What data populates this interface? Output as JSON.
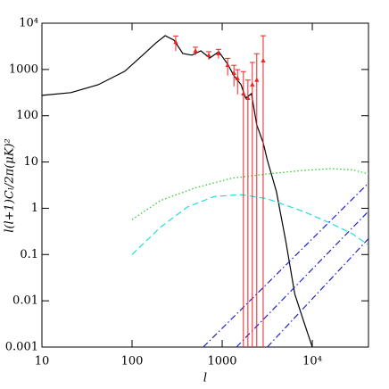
{
  "chart_data": {
    "type": "line",
    "xlabel": "l",
    "ylabel": "l(l+1)Cₗ/2π(μK)²",
    "xscale": "log",
    "yscale": "log",
    "xlim": [
      10,
      42000
    ],
    "ylim": [
      0.001,
      10000
    ],
    "xticks": [
      10,
      100,
      1000,
      {
        "value": 10000,
        "label": "10⁴"
      }
    ],
    "yticks": [
      0.001,
      0.01,
      0.1,
      1,
      10,
      100,
      1000,
      {
        "value": 10000,
        "label": "10⁴"
      }
    ],
    "series": [
      {
        "color": "#000000",
        "dash": "solid",
        "x": [
          10,
          21,
          42,
          83,
          131,
          185,
          233,
          292,
          366,
          460,
          580,
          728,
          916,
          1150,
          1350,
          1620,
          1820,
          2110,
          2420,
          2850,
          3170,
          4000,
          5060,
          6390,
          8020,
          10000
        ],
        "values": [
          275,
          316,
          468,
          912,
          2040,
          3780,
          5370,
          4300,
          2210,
          2040,
          2520,
          1770,
          2420,
          1300,
          730,
          470,
          240,
          300,
          63,
          26,
          11,
          2.3,
          0.2,
          0.014,
          0.0036,
          0.001
        ]
      },
      {
        "color": "#22cc22",
        "dash": "dotted",
        "x": [
          100,
          207,
          515,
          1290,
          3170,
          8000,
          15800,
          28000,
          42000
        ],
        "values": [
          0.57,
          1.47,
          2.8,
          4.5,
          5.5,
          6.6,
          7.2,
          6.8,
          5.5
        ]
      },
      {
        "color": "#22dddd",
        "dash": "dashed",
        "x": [
          100,
          207,
          413,
          820,
          1620,
          3170,
          8000,
          15800,
          28000,
          42000
        ],
        "values": [
          0.1,
          0.39,
          1.07,
          1.8,
          1.97,
          1.6,
          0.85,
          0.48,
          0.28,
          0.16
        ]
      },
      {
        "color": "#2222cc",
        "dash": "dashdot",
        "x": [
          617,
          42000
        ],
        "values": [
          0.001,
          3.5
        ]
      },
      {
        "color": "#2222cc",
        "dash": "dashdot",
        "x": [
          1440,
          42000
        ],
        "values": [
          0.001,
          0.86
        ]
      },
      {
        "color": "#2222cc",
        "dash": "dashdot",
        "x": [
          3170,
          42000
        ],
        "values": [
          0.001,
          0.22
        ]
      }
    ],
    "errorbars": {
      "color": "#ee2222",
      "x": [
        305,
        505,
        710,
        910,
        1150,
        1350,
        1480,
        1720,
        1930,
        2160,
        2420,
        2850
      ],
      "values": [
        3900,
        2530,
        2020,
        2220,
        1240,
        830,
        640,
        300,
        240,
        470,
        590,
        1550
      ],
      "errors": [
        1400,
        500,
        400,
        500,
        500,
        400,
        350,
        600,
        350,
        950,
        1600,
        3800
      ]
    }
  }
}
